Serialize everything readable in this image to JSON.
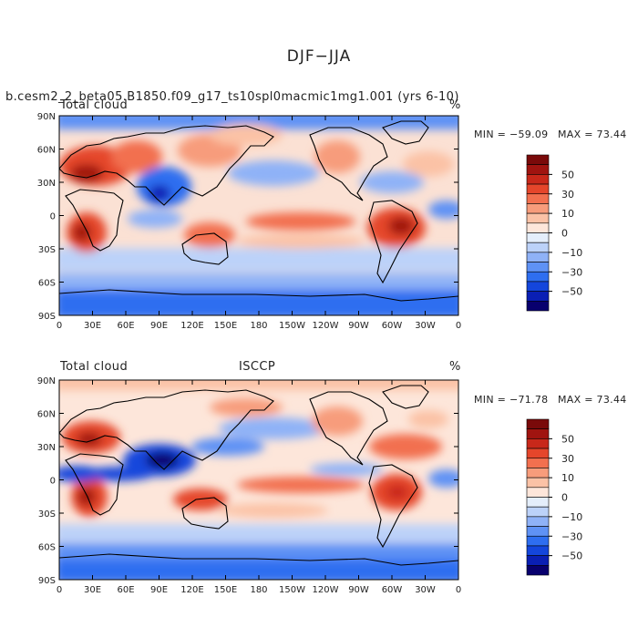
{
  "title": "DJF−JJA",
  "case_title": "b.cesm2_2_beta05.B1850.f09_g17_ts10spl0macmic1mg1.001 (yrs 6-10)",
  "colors": {
    "levels_palette": [
      "#08006e",
      "#0a1fb4",
      "#1446dc",
      "#2e6ef0",
      "#5f92f5",
      "#8fb2f7",
      "#bcd2f9",
      "#e4eefb",
      "#fde6da",
      "#fbc2a6",
      "#f79c7b",
      "#f2704f",
      "#e5462b",
      "#c8281a",
      "#a01410",
      "#7a0a0a"
    ]
  },
  "chart_data": [
    {
      "type": "heatmap",
      "left_label": "Total cloud",
      "center_label": "",
      "right_label": "%",
      "min_label": "MIN = −59.09",
      "max_label": "MAX =  73.44",
      "min": -59.09,
      "max": 73.44,
      "x_ticks": [
        "0",
        "30E",
        "60E",
        "90E",
        "120E",
        "150E",
        "180",
        "150W",
        "120W",
        "90W",
        "60W",
        "30W",
        "0"
      ],
      "y_ticks": [
        "90N",
        "60N",
        "30N",
        "0",
        "30S",
        "60S",
        "90S"
      ],
      "colorbar_labels": [
        "50",
        "30",
        "10",
        "0",
        "−10",
        "−30",
        "−50"
      ]
    },
    {
      "type": "heatmap",
      "left_label": "Total cloud",
      "center_label": "ISCCP",
      "right_label": "%",
      "min_label": "MIN = −71.78",
      "max_label": "MAX =  73.44",
      "min": -71.78,
      "max": 73.44,
      "x_ticks": [
        "0",
        "30E",
        "60E",
        "90E",
        "120E",
        "150E",
        "180",
        "150W",
        "120W",
        "90W",
        "60W",
        "30W",
        "0"
      ],
      "y_ticks": [
        "90N",
        "60N",
        "30N",
        "0",
        "30S",
        "60S",
        "90S"
      ],
      "colorbar_labels": [
        "50",
        "30",
        "10",
        "0",
        "−10",
        "−30",
        "−50"
      ]
    }
  ]
}
